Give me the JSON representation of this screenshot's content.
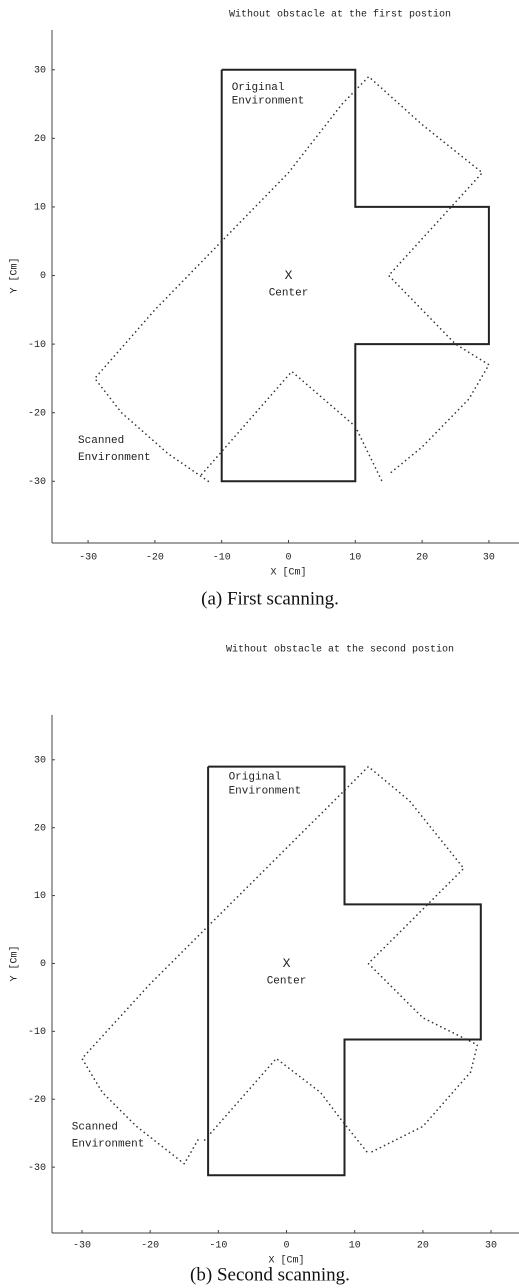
{
  "chart_data": [
    {
      "type": "line",
      "title": "Without obstacle at the first postion",
      "caption": "(a) First scanning.",
      "x_label": "X [Cm]",
      "y_label": "Y [Cm]",
      "xlim": [
        -35.4,
        34.5
      ],
      "ylim": [
        -39,
        35.8
      ],
      "xticks": [
        -30,
        -20,
        -10,
        0,
        10,
        20,
        30
      ],
      "yticks": [
        -30,
        -20,
        -10,
        0,
        10,
        20,
        30
      ],
      "series": [
        {
          "color": "#222222",
          "style": "solid",
          "x": [
            -10,
            10,
            10,
            30,
            30,
            10,
            10,
            -10,
            -10
          ],
          "values": [
            30,
            30,
            10,
            10,
            -10,
            -10,
            -30,
            -30,
            30
          ]
        },
        {
          "color": "#333333",
          "style": "dotted",
          "x": [
            -12,
            -18,
            -25,
            -29,
            -20,
            -10,
            0,
            8,
            12,
            20,
            29,
            15,
            25,
            30,
            27,
            20,
            15,
            null,
            -13,
            0.5,
            10,
            14
          ],
          "values": [
            -30,
            -26,
            -20,
            -15,
            -5,
            5,
            15,
            25,
            29,
            22,
            15,
            0,
            -10,
            -13,
            -18,
            -25,
            -29,
            null,
            -29,
            -14,
            -22,
            -30
          ]
        }
      ],
      "annotations": [
        "Original",
        "Environment",
        "Scanned",
        "Environment",
        "X",
        "Center"
      ]
    },
    {
      "type": "line",
      "title": "Without obstacle at the second postion",
      "caption": "(b) Second scanning.",
      "x_label": "X [Cm]",
      "y_label": "Y [Cm]",
      "xlim": [
        -34.4,
        34.1
      ],
      "ylim": [
        -39.7,
        36.6
      ],
      "xticks": [
        -30,
        -20,
        -10,
        0,
        10,
        20,
        30
      ],
      "yticks": [
        -30,
        -20,
        -10,
        0,
        10,
        20,
        30
      ],
      "series": [
        {
          "color": "#222222",
          "style": "solid",
          "x": [
            -11.5,
            8.5,
            8.5,
            28.5,
            28.5,
            8.5,
            8.5,
            -11.5,
            -11.5
          ],
          "values": [
            29,
            29,
            8.7,
            8.7,
            -11.2,
            -11.2,
            -31.2,
            -31.2,
            29
          ]
        },
        {
          "color": "#333333",
          "style": "dotted",
          "x": [
            -13,
            -15,
            -22,
            -27,
            -30,
            -20,
            -10,
            0,
            8,
            12,
            18,
            26,
            12,
            20,
            28,
            27,
            20,
            12,
            null,
            -12,
            -1.5,
            5,
            8,
            12
          ],
          "values": [
            -26,
            -29.5,
            -24,
            -19,
            -14,
            -3,
            7,
            17,
            25,
            29,
            24,
            14,
            0,
            -8,
            -12,
            -16,
            -24,
            -28,
            null,
            -26,
            -14,
            -19,
            -23,
            -28
          ]
        }
      ],
      "annotations": [
        "Original",
        "Environment",
        "Scanned",
        "Environment",
        "X",
        "Center"
      ]
    }
  ]
}
